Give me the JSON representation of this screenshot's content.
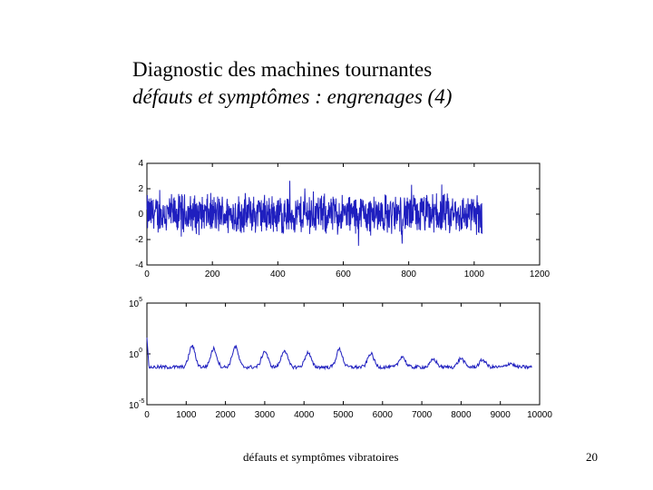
{
  "slide": {
    "title": "Diagnostic des machines tournantes",
    "subtitle": "défauts et symptômes : engrenages (4)",
    "footer": "défauts et symptômes vibratoires",
    "page_number": "20"
  },
  "chart_data": [
    {
      "type": "line",
      "title": "",
      "xlabel": "",
      "ylabel": "",
      "xlim": [
        0,
        1200
      ],
      "ylim": [
        -4,
        4
      ],
      "x_ticks": [
        "0",
        "200",
        "400",
        "600",
        "800",
        "1000",
        "1200"
      ],
      "y_ticks": [
        "4",
        "2",
        "0",
        "-2",
        "-4"
      ],
      "grid": false,
      "color": "#1f1fbf",
      "series": [
        {
          "x_start": 0,
          "x_end": 1024,
          "points": 1024,
          "amplitude": 1.5,
          "mean": 0
        }
      ]
    },
    {
      "type": "line",
      "title": "",
      "xlabel": "",
      "ylabel": "",
      "yscale": "log",
      "xlim": [
        0,
        10000
      ],
      "ylim": [
        "1e-5",
        "1e5"
      ],
      "x_ticks": [
        "0",
        "1000",
        "2000",
        "3000",
        "4000",
        "5000",
        "6000",
        "7000",
        "8000",
        "9000",
        "10000"
      ],
      "y_ticks": [
        "10^5",
        "10^0",
        "10^-5"
      ],
      "grid": false,
      "color": "#1f1fbf",
      "series": [
        {
          "x_start": 0,
          "x_end": 9800,
          "peaks_x": [
            1150,
            1700,
            2250,
            3000,
            3500,
            4100,
            4900,
            5700,
            6500,
            7300,
            8000,
            8550,
            9250
          ],
          "peak_log10": [
            0.9,
            0.6,
            0.8,
            0.35,
            0.45,
            0.2,
            0.55,
            0.1,
            -0.2,
            -0.5,
            -0.4,
            -0.55,
            -0.9
          ],
          "baseline_log10": -1.3
        }
      ]
    }
  ]
}
